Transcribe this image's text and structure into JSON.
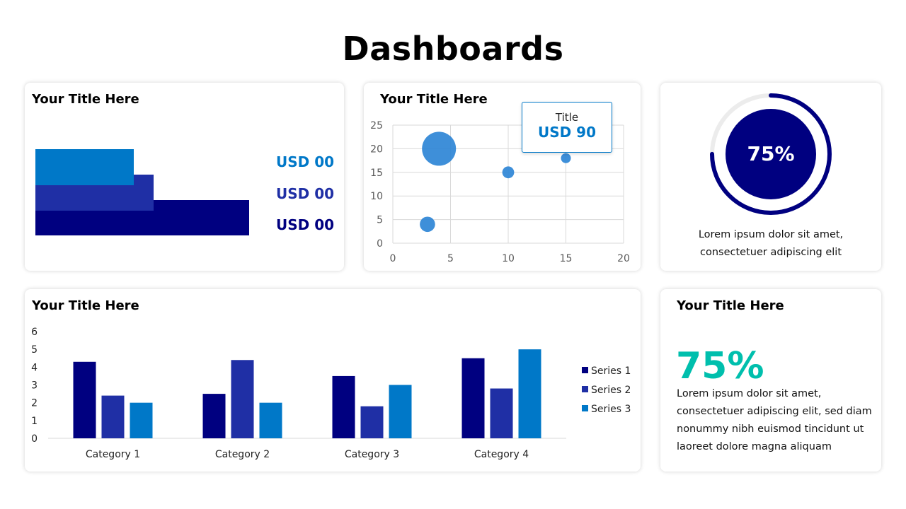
{
  "page_title": "Dashboards",
  "colors": {
    "dark_navy": "#000080",
    "royal_blue": "#1F2FA5",
    "azure": "#0078C8",
    "teal": "#00BFAD",
    "grid": "#d9d9d9"
  },
  "card1": {
    "title": "Your Title Here",
    "values": [
      "USD 00",
      "USD 00",
      "USD 00"
    ]
  },
  "card2": {
    "title": "Your Title Here",
    "callout": {
      "label": "Title",
      "value": "USD 90"
    }
  },
  "card3": {
    "percent_label": "75%",
    "progress": 0.75,
    "text": "Lorem ipsum dolor sit amet, consectetuer adipiscing elit"
  },
  "card4": {
    "title": "Your Title Here"
  },
  "card5": {
    "title": "Your Title Here",
    "percent_label": "75%",
    "text": "Lorem ipsum dolor sit amet, consectetuer adipiscing elit, sed diam nonummy nibh euismod tincidunt ut laoreet dolore magna aliquam"
  },
  "chart_data": [
    {
      "type": "bar",
      "orientation": "horizontal",
      "series": [
        {
          "name": "",
          "values": [
            0.4
          ]
        },
        {
          "name": "",
          "values": [
            0.48
          ]
        },
        {
          "name": "",
          "values": [
            0.87
          ]
        }
      ]
    },
    {
      "type": "scatter",
      "variant": "bubble",
      "points": [
        {
          "x": 3,
          "y": 4,
          "size": 0.45
        },
        {
          "x": 4,
          "y": 20,
          "size": 1.0
        },
        {
          "x": 10,
          "y": 15,
          "size": 0.35
        },
        {
          "x": 15,
          "y": 18,
          "size": 0.2
        }
      ],
      "xlim": [
        0,
        20
      ],
      "ylim": [
        0,
        25
      ],
      "xticks": [
        0,
        5,
        10,
        15,
        20
      ],
      "yticks": [
        0,
        5,
        10,
        15,
        20,
        25
      ],
      "grid": true
    },
    {
      "type": "bar",
      "categories": [
        "Category 1",
        "Category 2",
        "Category 3",
        "Category 4"
      ],
      "series": [
        {
          "name": "Series 1",
          "values": [
            4.3,
            2.5,
            3.5,
            4.5
          ]
        },
        {
          "name": "Series 2",
          "values": [
            2.4,
            4.4,
            1.8,
            2.8
          ]
        },
        {
          "name": "Series 3",
          "values": [
            2.0,
            2.0,
            3.0,
            5.0
          ]
        }
      ],
      "ylim": [
        0,
        6
      ],
      "yticks": [
        0,
        1,
        2,
        3,
        4,
        5,
        6
      ],
      "legend": "right"
    }
  ]
}
